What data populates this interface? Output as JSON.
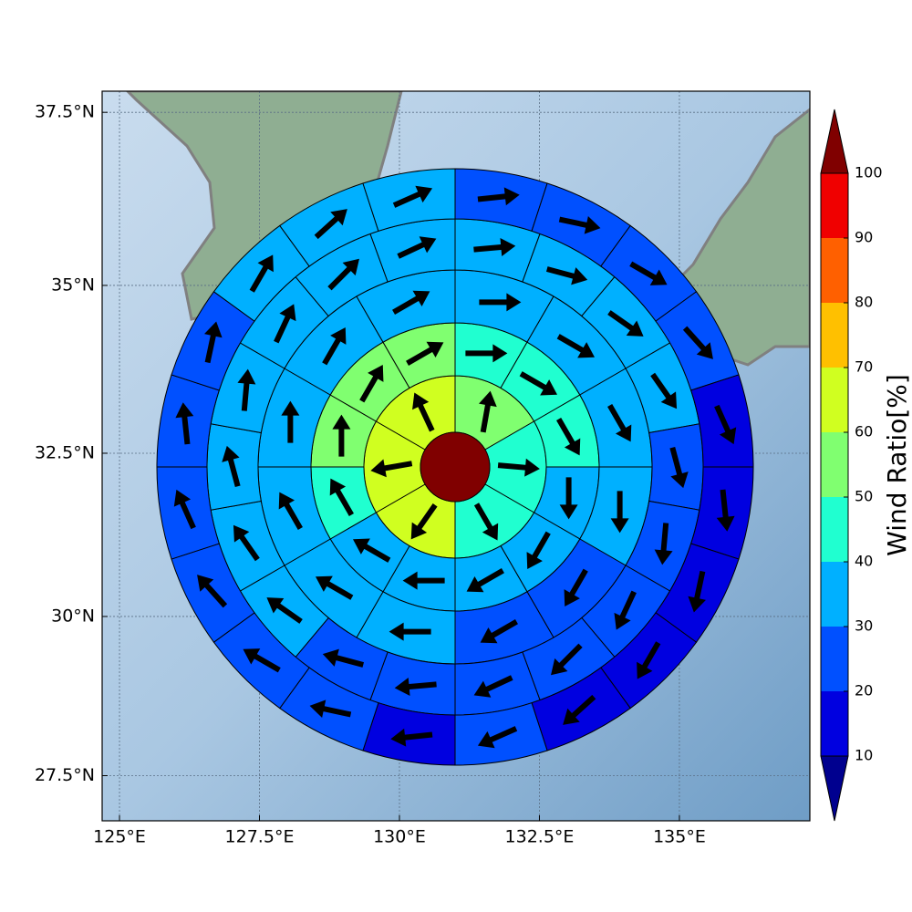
{
  "chart_data": {
    "type": "polar-sector-map",
    "projection": "mercator",
    "xlim": [
      124.69,
      137.33
    ],
    "ylim": [
      26.78,
      37.8
    ],
    "xticks": [
      {
        "value": 125,
        "label": "125°E"
      },
      {
        "value": 127.5,
        "label": "127.5°E"
      },
      {
        "value": 130,
        "label": "130°E"
      },
      {
        "value": 132.5,
        "label": "132.5°E"
      },
      {
        "value": 135,
        "label": "135°E"
      }
    ],
    "yticks": [
      {
        "value": 27.5,
        "label": "27.5°N"
      },
      {
        "value": 30,
        "label": "30°N"
      },
      {
        "value": 32.5,
        "label": "32.5°N"
      },
      {
        "value": 35,
        "label": "35°N"
      },
      {
        "value": 37.5,
        "label": "37.5°N"
      }
    ],
    "grid": true,
    "center_value": 105,
    "rings": [
      {
        "values": [
          55,
          45,
          45,
          65,
          65,
          65
        ],
        "directions": [
          10,
          95,
          150,
          215,
          260,
          335
        ]
      },
      {
        "values": [
          45,
          45,
          45,
          35,
          35,
          35,
          35,
          35,
          45,
          55,
          55,
          55
        ],
        "directions": [
          90,
          120,
          150,
          180,
          210,
          240,
          270,
          300,
          330,
          0,
          30,
          60
        ]
      },
      {
        "values": [
          35,
          35,
          35,
          35,
          25,
          25,
          35,
          35,
          35,
          35,
          35,
          35
        ],
        "directions": [
          90,
          120,
          150,
          180,
          210,
          240,
          270,
          300,
          330,
          0,
          30,
          60
        ]
      },
      {
        "values": [
          35,
          35,
          35,
          35,
          25,
          25,
          25,
          25,
          25,
          25,
          25,
          35,
          35,
          35,
          35,
          35,
          35,
          35
        ],
        "directions": [
          85,
          105,
          125,
          145,
          165,
          185,
          205,
          225,
          245,
          265,
          285,
          305,
          325,
          345,
          5,
          25,
          45,
          65
        ]
      },
      {
        "values": [
          25,
          25,
          25,
          25,
          15,
          15,
          15,
          15,
          15,
          25,
          15,
          25,
          25,
          25,
          25,
          25,
          25,
          35,
          35,
          35
        ],
        "directions": [
          84,
          102,
          120,
          138,
          156,
          174,
          192,
          210,
          228,
          246,
          264,
          282,
          300,
          318,
          336,
          354,
          12,
          30,
          48,
          66
        ]
      }
    ],
    "colorbar": {
      "label": "Wind Ratio[%]",
      "lim": [
        10,
        100
      ],
      "ticks": [
        10,
        20,
        30,
        40,
        50,
        60,
        70,
        80,
        90,
        100
      ],
      "extend": "both",
      "colors": [
        "#00008f",
        "#0000e0",
        "#0050ff",
        "#00b0ff",
        "#20ffd0",
        "#80ff70",
        "#d0ff20",
        "#ffc000",
        "#ff6000",
        "#f00000",
        "#800000"
      ]
    },
    "arrow_color": "#000000"
  }
}
